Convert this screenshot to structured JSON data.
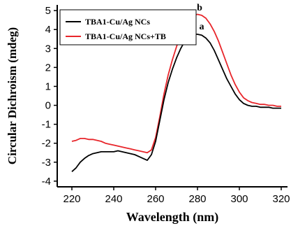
{
  "chart_data": {
    "type": "line",
    "xlabel": "Wavelength (nm)",
    "ylabel": "Circular Dichroism (mdeg)",
    "xlim": [
      213,
      323
    ],
    "ylim": [
      -4.3,
      5.3
    ],
    "xticks": [
      220,
      240,
      260,
      280,
      300,
      320
    ],
    "yticks": [
      -4,
      -3,
      -2,
      -1,
      0,
      1,
      2,
      3,
      4,
      5
    ],
    "grid": false,
    "legend_position": "top-left",
    "annotations": [
      {
        "text": "b",
        "x": 281,
        "y": 5.0
      },
      {
        "text": "a",
        "x": 282,
        "y": 4.0
      }
    ],
    "series": [
      {
        "name": "TBA1-Cu/Ag NCs",
        "color": "#000000",
        "x": [
          220,
          222,
          224,
          226,
          228,
          230,
          232,
          234,
          236,
          238,
          240,
          242,
          244,
          246,
          248,
          250,
          252,
          254,
          256,
          258,
          260,
          262,
          264,
          266,
          268,
          270,
          272,
          274,
          276,
          278,
          280,
          282,
          284,
          286,
          288,
          290,
          292,
          294,
          296,
          298,
          300,
          302,
          304,
          306,
          308,
          310,
          312,
          314,
          316,
          318,
          320
        ],
        "y": [
          -3.5,
          -3.3,
          -3.0,
          -2.8,
          -2.65,
          -2.55,
          -2.5,
          -2.45,
          -2.45,
          -2.45,
          -2.45,
          -2.4,
          -2.45,
          -2.5,
          -2.55,
          -2.6,
          -2.7,
          -2.8,
          -2.9,
          -2.6,
          -1.9,
          -0.8,
          0.3,
          1.2,
          1.9,
          2.5,
          3.0,
          3.4,
          3.65,
          3.75,
          3.75,
          3.7,
          3.55,
          3.3,
          2.9,
          2.4,
          1.9,
          1.4,
          1.0,
          0.6,
          0.3,
          0.1,
          0.0,
          -0.05,
          -0.05,
          -0.1,
          -0.1,
          -0.1,
          -0.15,
          -0.15,
          -0.15
        ]
      },
      {
        "name": "TBA1-Cu/Ag NCs+TB",
        "color": "#e8262b",
        "x": [
          220,
          222,
          224,
          226,
          228,
          230,
          232,
          234,
          236,
          238,
          240,
          242,
          244,
          246,
          248,
          250,
          252,
          254,
          256,
          258,
          260,
          262,
          264,
          266,
          268,
          270,
          272,
          274,
          276,
          278,
          280,
          282,
          284,
          286,
          288,
          290,
          292,
          294,
          296,
          298,
          300,
          302,
          304,
          306,
          308,
          310,
          312,
          314,
          316,
          318,
          320
        ],
        "y": [
          -1.9,
          -1.85,
          -1.75,
          -1.75,
          -1.8,
          -1.8,
          -1.85,
          -1.9,
          -2.0,
          -2.05,
          -2.1,
          -2.15,
          -2.2,
          -2.25,
          -2.3,
          -2.35,
          -2.4,
          -2.45,
          -2.5,
          -2.35,
          -1.7,
          -0.6,
          0.6,
          1.6,
          2.4,
          3.1,
          3.7,
          4.2,
          4.55,
          4.75,
          4.8,
          4.75,
          4.6,
          4.3,
          3.9,
          3.4,
          2.8,
          2.2,
          1.6,
          1.1,
          0.7,
          0.4,
          0.25,
          0.15,
          0.1,
          0.05,
          0.05,
          0.0,
          0.0,
          -0.05,
          -0.05
        ]
      }
    ]
  }
}
